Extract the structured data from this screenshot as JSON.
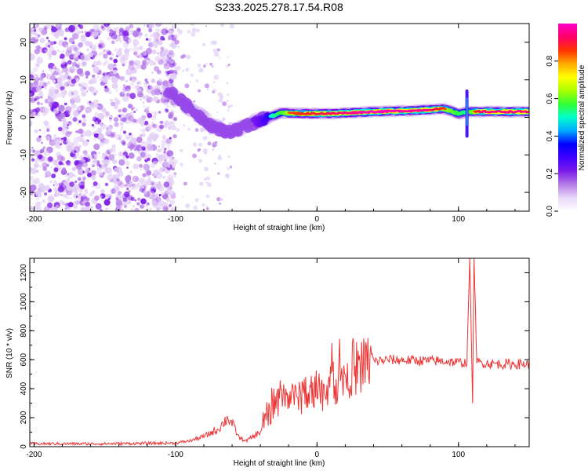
{
  "title": "S233.2025.278.17.54.R08",
  "chart_data": [
    {
      "type": "heatmap",
      "name": "spectrogram",
      "xlabel": "Height of straight line (km)",
      "ylabel": "Frequency (Hz)",
      "xlim": [
        -203,
        150
      ],
      "ylim": [
        -25,
        25
      ],
      "xticks": [
        -200,
        -100,
        0,
        100
      ],
      "yticks": [
        20,
        10,
        0,
        -10,
        -20
      ],
      "colorbar": {
        "label": "Normalized spectral amplitude",
        "range": [
          0,
          1
        ],
        "ticks": [
          0.0,
          0.2,
          0.4,
          0.6,
          0.8
        ],
        "colors": [
          "#ffffff",
          "#e8d8f8",
          "#b57be6",
          "#7a1bea",
          "#4000ff",
          "#0000ff",
          "#00aaff",
          "#00ffcc",
          "#33ff33",
          "#aaff00",
          "#ffff00",
          "#ffaa00",
          "#ff3300",
          "#ff0066",
          "#ff00cc"
        ]
      },
      "line_center_hz": [
        {
          "x": -105,
          "y": 7
        },
        {
          "x": -95,
          "y": 4
        },
        {
          "x": -85,
          "y": 1
        },
        {
          "x": -75,
          "y": -2
        },
        {
          "x": -65,
          "y": -4
        },
        {
          "x": -55,
          "y": -3
        },
        {
          "x": -45,
          "y": -1.5
        },
        {
          "x": -35,
          "y": 0
        },
        {
          "x": -25,
          "y": 1.2
        },
        {
          "x": -10,
          "y": 1
        },
        {
          "x": 10,
          "y": 1
        },
        {
          "x": 40,
          "y": 1.5
        },
        {
          "x": 70,
          "y": 1.8
        },
        {
          "x": 90,
          "y": 2.3
        },
        {
          "x": 100,
          "y": 1
        },
        {
          "x": 107,
          "y": 1.5
        },
        {
          "x": 130,
          "y": 1.5
        },
        {
          "x": 150,
          "y": 1.5
        }
      ],
      "peak_amplitude": [
        {
          "x": -105,
          "a": 0.25
        },
        {
          "x": -95,
          "a": 0.3
        },
        {
          "x": -80,
          "a": 0.3
        },
        {
          "x": -70,
          "a": 0.3
        },
        {
          "x": -60,
          "a": 0.3
        },
        {
          "x": -50,
          "a": 0.35
        },
        {
          "x": -40,
          "a": 0.5
        },
        {
          "x": -30,
          "a": 0.7
        },
        {
          "x": -20,
          "a": 0.85
        },
        {
          "x": 0,
          "a": 0.9
        },
        {
          "x": 40,
          "a": 1.0
        },
        {
          "x": 80,
          "a": 0.95
        },
        {
          "x": 105,
          "a": 0.7
        },
        {
          "x": 115,
          "a": 0.95
        },
        {
          "x": 150,
          "a": 0.95
        }
      ]
    },
    {
      "type": "line",
      "name": "snr",
      "xlabel": "Height of straight line (km)",
      "ylabel": "SNR (10 * v/v)",
      "xlim": [
        -203,
        150
      ],
      "ylim": [
        0,
        1300
      ],
      "xticks": [
        -200,
        -100,
        0,
        100
      ],
      "yticks": [
        0,
        200,
        400,
        600,
        800,
        1000,
        1200
      ],
      "color": "#ee3333",
      "series": [
        {
          "name": "SNR",
          "points": [
            {
              "x": -203,
              "y": 20
            },
            {
              "x": -150,
              "y": 20
            },
            {
              "x": -100,
              "y": 25
            },
            {
              "x": -90,
              "y": 40
            },
            {
              "x": -80,
              "y": 70
            },
            {
              "x": -70,
              "y": 120
            },
            {
              "x": -63,
              "y": 200
            },
            {
              "x": -60,
              "y": 160
            },
            {
              "x": -55,
              "y": 60
            },
            {
              "x": -50,
              "y": 40
            },
            {
              "x": -40,
              "y": 100
            },
            {
              "x": -35,
              "y": 200
            },
            {
              "x": -30,
              "y": 280
            },
            {
              "x": -25,
              "y": 320
            },
            {
              "x": -15,
              "y": 330
            },
            {
              "x": -5,
              "y": 350
            },
            {
              "x": 5,
              "y": 380
            },
            {
              "x": 15,
              "y": 450
            },
            {
              "x": 25,
              "y": 530
            },
            {
              "x": 35,
              "y": 580
            },
            {
              "x": 50,
              "y": 600
            },
            {
              "x": 90,
              "y": 590
            },
            {
              "x": 100,
              "y": 580
            },
            {
              "x": 106,
              "y": 580
            },
            {
              "x": 108,
              "y": 1300
            },
            {
              "x": 110,
              "y": 300
            },
            {
              "x": 111,
              "y": 1300
            },
            {
              "x": 113,
              "y": 580
            },
            {
              "x": 130,
              "y": 570
            },
            {
              "x": 150,
              "y": 570
            }
          ]
        }
      ]
    }
  ]
}
